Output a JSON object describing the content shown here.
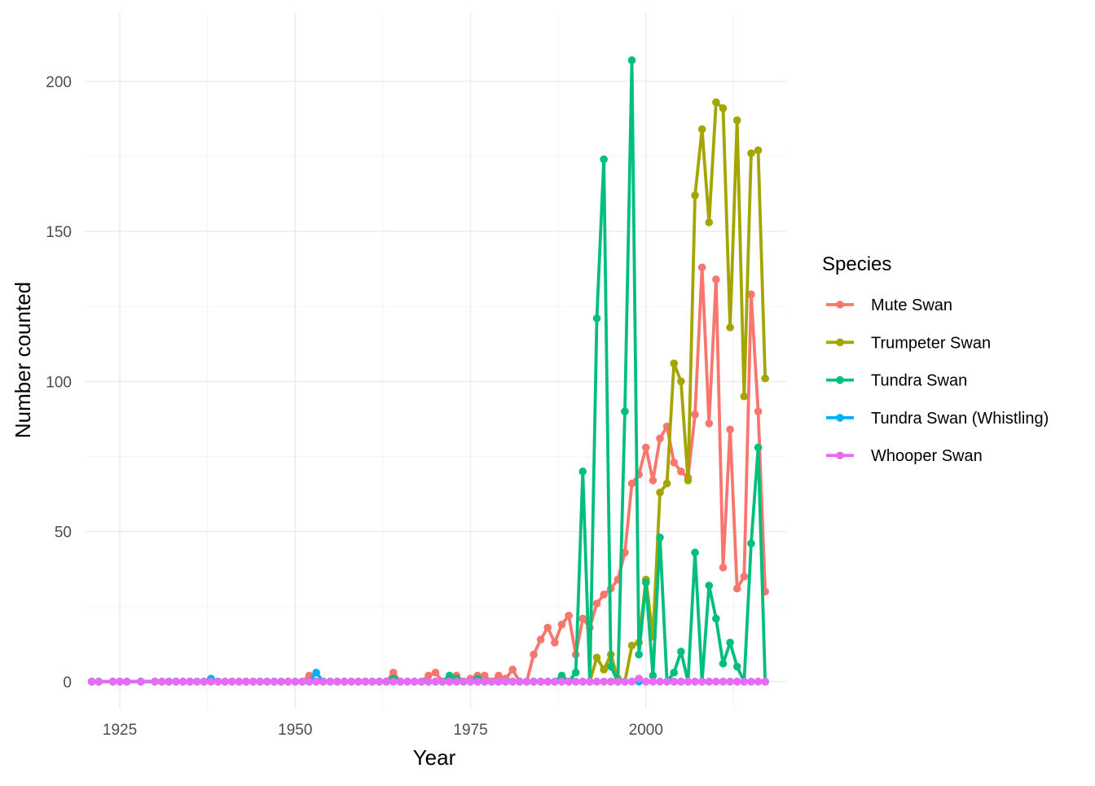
{
  "chart_data": {
    "type": "line",
    "title": "",
    "xlabel": "Year",
    "ylabel": "Number counted",
    "xlim": [
      1920,
      2020
    ],
    "ylim": [
      -9,
      223
    ],
    "x_ticks": [
      1925,
      1950,
      1975,
      2000
    ],
    "y_ticks": [
      0,
      50,
      100,
      150,
      200
    ],
    "grid": true,
    "legend_title": "Species",
    "legend_position": "right",
    "x": [
      1921,
      1922,
      1924,
      1925,
      1926,
      1928,
      1930,
      1931,
      1932,
      1933,
      1934,
      1935,
      1936,
      1937,
      1938,
      1939,
      1940,
      1941,
      1942,
      1943,
      1944,
      1945,
      1946,
      1947,
      1948,
      1949,
      1950,
      1951,
      1952,
      1953,
      1954,
      1955,
      1956,
      1957,
      1958,
      1959,
      1960,
      1961,
      1962,
      1963,
      1964,
      1965,
      1966,
      1967,
      1968,
      1969,
      1970,
      1971,
      1972,
      1973,
      1974,
      1975,
      1976,
      1977,
      1978,
      1979,
      1980,
      1981,
      1982,
      1983,
      1984,
      1985,
      1986,
      1987,
      1988,
      1989,
      1990,
      1991,
      1992,
      1993,
      1994,
      1995,
      1996,
      1997,
      1998,
      1999,
      2000,
      2001,
      2002,
      2003,
      2004,
      2005,
      2006,
      2007,
      2008,
      2009,
      2010,
      2011,
      2012,
      2013,
      2014,
      2015,
      2016,
      2017
    ],
    "series": [
      {
        "name": "Mute Swan",
        "color": "#F8766D",
        "values": [
          0,
          0,
          0,
          0,
          0,
          0,
          0,
          0,
          0,
          0,
          0,
          0,
          0,
          0,
          0,
          0,
          0,
          0,
          0,
          0,
          0,
          0,
          0,
          0,
          0,
          0,
          0,
          0,
          2,
          0,
          0,
          0,
          0,
          0,
          0,
          0,
          0,
          0,
          0,
          0,
          3,
          0,
          0,
          0,
          0,
          2,
          3,
          0,
          0,
          2,
          0,
          1,
          2,
          2,
          0,
          2,
          1,
          4,
          0,
          0,
          9,
          14,
          18,
          13,
          19,
          22,
          9,
          21,
          18,
          26,
          29,
          31,
          34,
          43,
          66,
          69,
          78,
          67,
          81,
          85,
          73,
          70,
          68,
          89,
          138,
          86,
          134,
          38,
          84,
          31,
          35,
          129,
          90,
          30
        ]
      },
      {
        "name": "Trumpeter Swan",
        "color": "#A3A500",
        "values": [
          0,
          0,
          0,
          0,
          0,
          0,
          0,
          0,
          0,
          0,
          0,
          0,
          0,
          0,
          0,
          0,
          0,
          0,
          0,
          0,
          0,
          0,
          0,
          0,
          0,
          0,
          0,
          0,
          0,
          0,
          0,
          0,
          0,
          0,
          0,
          0,
          0,
          0,
          0,
          0,
          0,
          0,
          0,
          0,
          0,
          0,
          0,
          0,
          0,
          0,
          0,
          0,
          0,
          0,
          0,
          0,
          0,
          0,
          0,
          0,
          0,
          0,
          0,
          0,
          0,
          0,
          0,
          0,
          0,
          8,
          4,
          9,
          1,
          0,
          12,
          13,
          34,
          15,
          63,
          66,
          106,
          100,
          67,
          162,
          184,
          153,
          193,
          191,
          118,
          187,
          95,
          176,
          177,
          101
        ]
      },
      {
        "name": "Tundra Swan",
        "color": "#00BF7D",
        "values": [
          0,
          0,
          0,
          0,
          0,
          0,
          0,
          0,
          0,
          0,
          0,
          0,
          0,
          0,
          0,
          0,
          0,
          0,
          0,
          0,
          0,
          0,
          0,
          0,
          0,
          0,
          0,
          0,
          0,
          0,
          0,
          0,
          0,
          0,
          0,
          0,
          0,
          0,
          0,
          0,
          1,
          0,
          0,
          0,
          0,
          0,
          0,
          0,
          2,
          1,
          0,
          0,
          1,
          0,
          0,
          0,
          0,
          0,
          0,
          0,
          0,
          0,
          0,
          0,
          2,
          0,
          3,
          70,
          0,
          121,
          174,
          5,
          0,
          90,
          207,
          9,
          33,
          2,
          48,
          0,
          3,
          10,
          0,
          43,
          0,
          32,
          21,
          6,
          13,
          5,
          0,
          46,
          78,
          0
        ]
      },
      {
        "name": "Tundra Swan (Whistling)",
        "color": "#00B0F6",
        "values": [
          0,
          0,
          0,
          0,
          0,
          0,
          0,
          0,
          0,
          0,
          0,
          0,
          0,
          0,
          1,
          0,
          0,
          0,
          0,
          0,
          0,
          0,
          0,
          0,
          0,
          0,
          0,
          0,
          0,
          3,
          0,
          0,
          0,
          0,
          0,
          0,
          0,
          0,
          0,
          0,
          0,
          0,
          0,
          0,
          0,
          0,
          0,
          0,
          0,
          0,
          0,
          0,
          0,
          0,
          0,
          0,
          0,
          0,
          0,
          0,
          0,
          0,
          0,
          0,
          0,
          0,
          0,
          0,
          0,
          0,
          0,
          0,
          0,
          0,
          0,
          0,
          0,
          0,
          0,
          0,
          0,
          0,
          0,
          0,
          0,
          0,
          0,
          0,
          0,
          0,
          0,
          0,
          0,
          0
        ]
      },
      {
        "name": "Whooper Swan",
        "color": "#E76BF3",
        "values": [
          0,
          0,
          0,
          0,
          0,
          0,
          0,
          0,
          0,
          0,
          0,
          0,
          0,
          0,
          0,
          0,
          0,
          0,
          0,
          0,
          0,
          0,
          0,
          0,
          0,
          0,
          0,
          0,
          0,
          0,
          0,
          0,
          0,
          0,
          0,
          0,
          0,
          0,
          0,
          0,
          0,
          0,
          0,
          0,
          0,
          0,
          0,
          0,
          0,
          0,
          0,
          0,
          0,
          0,
          0,
          0,
          0,
          0,
          0,
          0,
          0,
          0,
          0,
          0,
          0,
          0,
          0,
          0,
          0,
          0,
          0,
          0,
          0,
          0,
          0,
          1,
          0,
          0,
          0,
          0,
          0,
          0,
          0,
          0,
          0,
          0,
          0,
          0,
          0,
          0,
          0,
          0,
          0,
          0
        ]
      }
    ]
  }
}
